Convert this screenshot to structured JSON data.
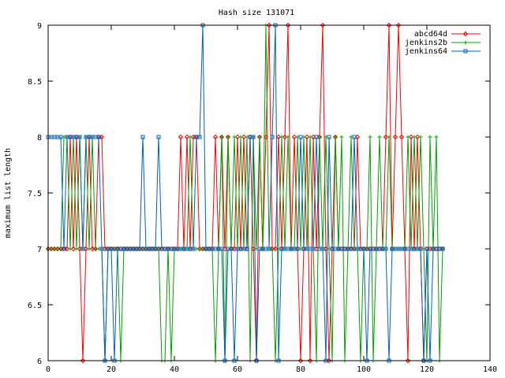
{
  "chart_data": {
    "type": "line",
    "title": "Hash size 131071",
    "xlabel": "",
    "ylabel": "maximum list length",
    "xlim": [
      0,
      140
    ],
    "ylim": [
      6,
      9
    ],
    "x_ticks": [
      0,
      20,
      40,
      60,
      80,
      100,
      120,
      140
    ],
    "x_tick_labels": [
      "0",
      "20",
      "40",
      "60",
      "80",
      "100",
      "120",
      "140"
    ],
    "y_ticks": [
      6,
      6.5,
      7,
      7.5,
      8,
      8.5,
      9
    ],
    "y_tick_labels": [
      "6",
      "6.5",
      "7",
      "7.5",
      "8",
      "8.5",
      "9"
    ],
    "grid": false,
    "legend_position": "top-right",
    "x": [
      0,
      1,
      2,
      3,
      4,
      5,
      6,
      7,
      8,
      9,
      10,
      11,
      12,
      13,
      14,
      15,
      16,
      17,
      18,
      19,
      20,
      21,
      22,
      23,
      24,
      25,
      26,
      27,
      28,
      29,
      30,
      31,
      32,
      33,
      34,
      35,
      36,
      37,
      38,
      39,
      40,
      41,
      42,
      43,
      44,
      45,
      46,
      47,
      48,
      49,
      50,
      51,
      52,
      53,
      54,
      55,
      56,
      57,
      58,
      59,
      60,
      61,
      62,
      63,
      64,
      65,
      66,
      67,
      68,
      69,
      70,
      71,
      72,
      73,
      74,
      75,
      76,
      77,
      78,
      79,
      80,
      81,
      82,
      83,
      84,
      85,
      86,
      87,
      88,
      89,
      90,
      91,
      92,
      93,
      94,
      95,
      96,
      97,
      98,
      99,
      100,
      101,
      102,
      103,
      104,
      105,
      106,
      107,
      108,
      109,
      110,
      111,
      112,
      113,
      114,
      115,
      116,
      117,
      118,
      119,
      120,
      121,
      122,
      123,
      124,
      125
    ],
    "series": [
      {
        "name": "abcd64d",
        "color": "#ff0000",
        "marker": "diamond",
        "values": [
          7,
          7,
          7,
          7,
          7,
          7,
          7,
          8,
          7,
          8,
          7,
          6,
          7,
          8,
          7,
          7,
          8,
          8,
          7,
          7,
          7,
          7,
          7,
          7,
          7,
          7,
          7,
          7,
          7,
          7,
          7,
          7,
          7,
          7,
          7,
          7,
          7,
          7,
          7,
          7,
          7,
          7,
          8,
          7,
          8,
          7,
          8,
          8,
          7,
          7,
          7,
          7,
          7,
          8,
          7,
          8,
          7,
          8,
          7,
          7,
          8,
          7,
          8,
          7,
          8,
          7,
          6,
          8,
          7,
          8,
          9,
          7,
          7,
          8,
          7,
          8,
          9,
          7,
          8,
          7,
          6,
          7,
          8,
          6,
          8,
          7,
          8,
          9,
          7,
          6,
          7,
          8,
          7,
          7,
          7,
          7,
          7,
          7,
          8,
          7,
          7,
          7,
          7,
          7,
          7,
          7,
          7,
          8,
          9,
          7,
          8,
          9,
          8,
          7,
          6,
          8,
          7,
          8,
          7,
          6,
          7,
          7,
          7,
          7,
          7,
          7
        ]
      },
      {
        "name": "jenkins2b",
        "color": "#00a000",
        "marker": "plus",
        "values": [
          7,
          7,
          7,
          7,
          7,
          8,
          8,
          7,
          8,
          7,
          8,
          7,
          8,
          7,
          8,
          7,
          7,
          7,
          6,
          7,
          7,
          7,
          7,
          6,
          7,
          7,
          7,
          7,
          7,
          7,
          7,
          7,
          7,
          7,
          7,
          7,
          6,
          6,
          7,
          6,
          7,
          7,
          7,
          7,
          7,
          8,
          7,
          7,
          7,
          7,
          7,
          7,
          7,
          6,
          7,
          8,
          6,
          8,
          7,
          8,
          7,
          8,
          7,
          8,
          6,
          8,
          7,
          8,
          7,
          9,
          7,
          7,
          6,
          7,
          8,
          7,
          8,
          7,
          7,
          8,
          7,
          8,
          7,
          8,
          7,
          6,
          8,
          7,
          8,
          7,
          6,
          8,
          7,
          8,
          6,
          7,
          8,
          7,
          7,
          6,
          7,
          7,
          8,
          6,
          7,
          8,
          7,
          7,
          8,
          7,
          7,
          7,
          7,
          7,
          8,
          7,
          8,
          7,
          8,
          7,
          6,
          8,
          7,
          8,
          6,
          7
        ]
      },
      {
        "name": "jenkins64",
        "color": "#0060c0",
        "marker": "square",
        "values": [
          8,
          8,
          8,
          8,
          8,
          7,
          8,
          8,
          8,
          8,
          8,
          7,
          8,
          8,
          8,
          8,
          8,
          7,
          6,
          7,
          7,
          6,
          7,
          7,
          7,
          7,
          7,
          7,
          7,
          7,
          8,
          7,
          7,
          7,
          7,
          8,
          7,
          7,
          7,
          7,
          7,
          7,
          7,
          7,
          7,
          7,
          7,
          8,
          8,
          9,
          7,
          7,
          7,
          7,
          7,
          7,
          6,
          7,
          7,
          6,
          7,
          7,
          7,
          7,
          8,
          8,
          6,
          7,
          7,
          7,
          7,
          8,
          9,
          6,
          7,
          7,
          7,
          7,
          7,
          7,
          8,
          7,
          7,
          7,
          7,
          8,
          7,
          7,
          6,
          8,
          7,
          7,
          7,
          7,
          7,
          7,
          7,
          8,
          7,
          7,
          7,
          6,
          7,
          7,
          7,
          7,
          7,
          7,
          6,
          7,
          7,
          7,
          7,
          7,
          7,
          7,
          7,
          7,
          7,
          6,
          7,
          6,
          7,
          7,
          7,
          7
        ]
      }
    ]
  }
}
